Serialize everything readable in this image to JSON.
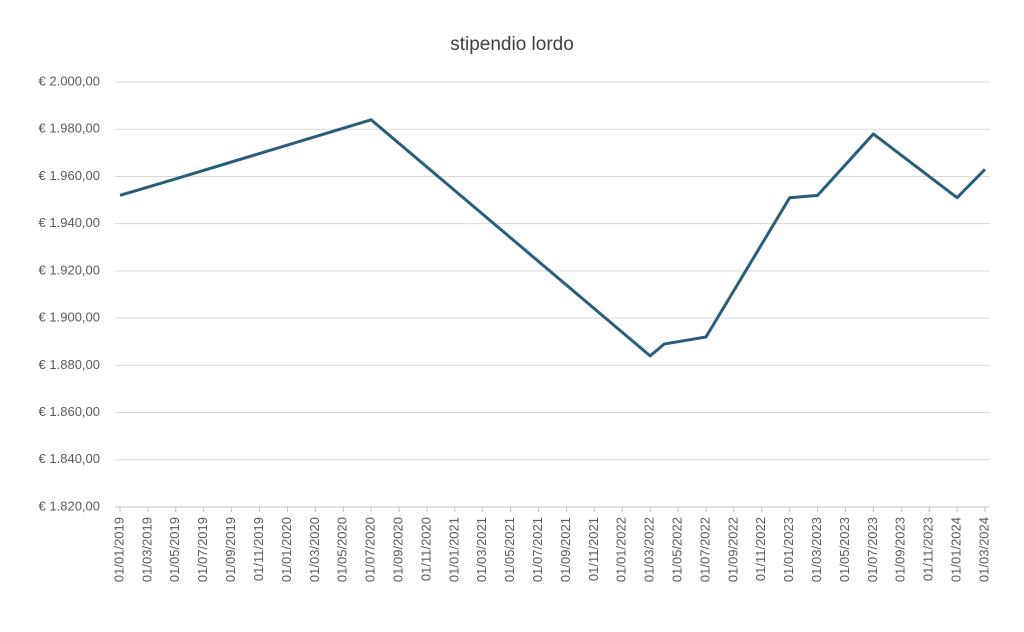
{
  "chart_data": {
    "type": "line",
    "title": "stipendio lordo",
    "x": [
      "01/01/2019",
      "01/05/2019",
      "01/07/2020",
      "01/03/2022",
      "01/04/2022",
      "01/07/2022",
      "01/01/2023",
      "01/03/2023",
      "01/07/2023",
      "01/01/2024",
      "01/03/2024"
    ],
    "series": [
      {
        "name": "stipendio lordo",
        "color": "#2a5d78",
        "values": [
          1952,
          1959,
          1984,
          1884,
          1889,
          1892,
          1951,
          1952,
          1978,
          1951,
          1963
        ]
      }
    ],
    "xlim": [
      "01/01/2019",
      "01/03/2024"
    ],
    "xticks": [
      "01/01/2019",
      "01/03/2019",
      "01/05/2019",
      "01/07/2019",
      "01/09/2019",
      "01/11/2019",
      "01/01/2020",
      "01/03/2020",
      "01/05/2020",
      "01/07/2020",
      "01/09/2020",
      "01/11/2020",
      "01/01/2021",
      "01/03/2021",
      "01/05/2021",
      "01/07/2021",
      "01/09/2021",
      "01/11/2021",
      "01/01/2022",
      "01/03/2022",
      "01/05/2022",
      "01/07/2022",
      "01/09/2022",
      "01/11/2022",
      "01/01/2023",
      "01/03/2023",
      "01/05/2023",
      "01/07/2023",
      "01/09/2023",
      "01/11/2023",
      "01/01/2024",
      "01/03/2024"
    ],
    "ylim": [
      1820,
      2000
    ],
    "yticks": [
      {
        "value": 1820,
        "label": "€ 1.820,00"
      },
      {
        "value": 1840,
        "label": "€ 1.840,00"
      },
      {
        "value": 1860,
        "label": "€ 1.860,00"
      },
      {
        "value": 1880,
        "label": "€ 1.880,00"
      },
      {
        "value": 1900,
        "label": "€ 1.900,00"
      },
      {
        "value": 1920,
        "label": "€ 1.920,00"
      },
      {
        "value": 1940,
        "label": "€ 1.940,00"
      },
      {
        "value": 1960,
        "label": "€ 1.960,00"
      },
      {
        "value": 1980,
        "label": "€ 1.980,00"
      },
      {
        "value": 2000,
        "label": "€ 2.000,00"
      }
    ],
    "grid": true
  }
}
